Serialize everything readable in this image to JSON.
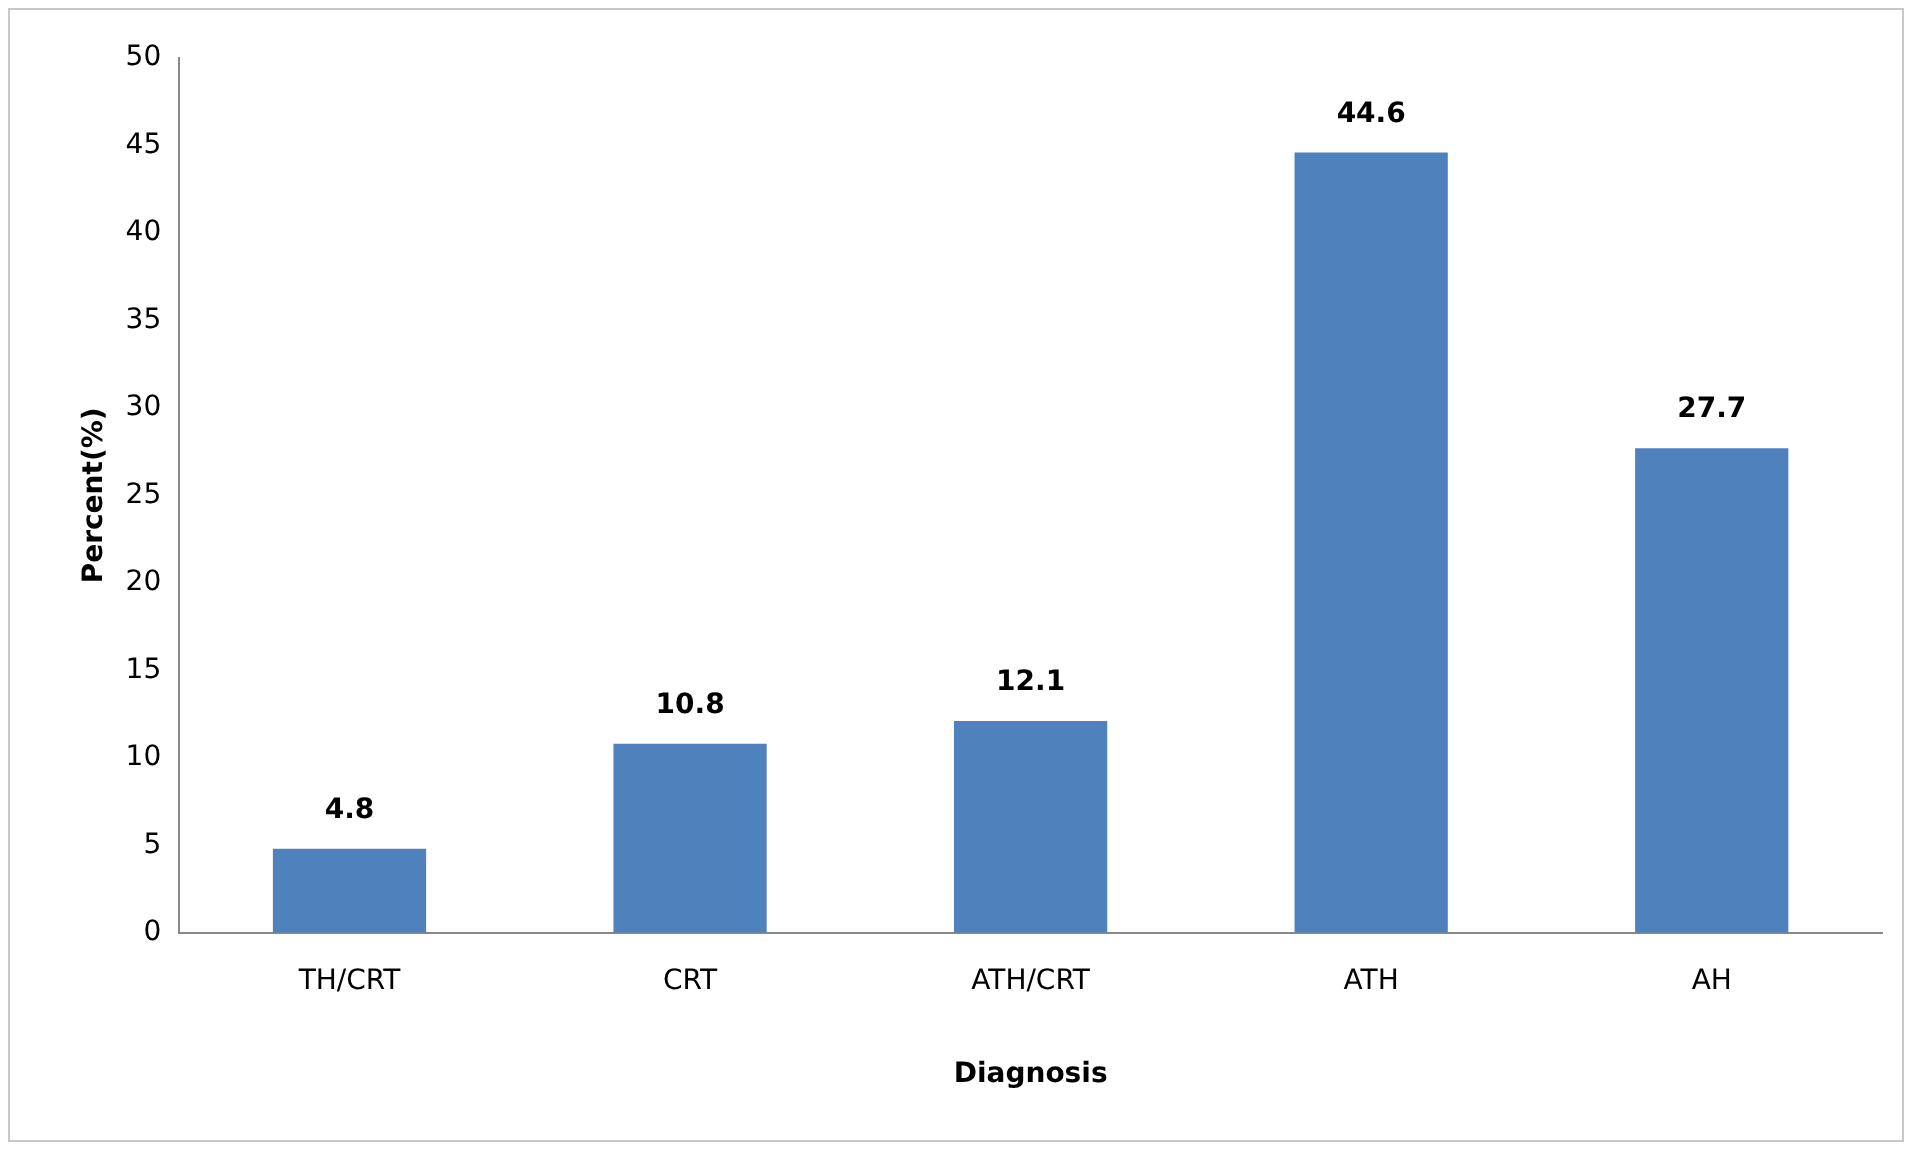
{
  "chart_data": {
    "type": "bar",
    "xlabel": "Diagnosis",
    "ylabel": "Percent(%)",
    "categories": [
      "TH/CRT",
      "CRT",
      "ATH/CRT",
      "ATH",
      "AH"
    ],
    "values": [
      4.8,
      10.8,
      12.1,
      44.6,
      27.7
    ],
    "color": "#4f81bd",
    "ylim": [
      0,
      50
    ],
    "yticks": [
      0,
      5,
      10,
      15,
      20,
      25,
      30,
      35,
      40,
      45,
      50
    ],
    "grid": false,
    "legend": false,
    "data_labels": true
  }
}
